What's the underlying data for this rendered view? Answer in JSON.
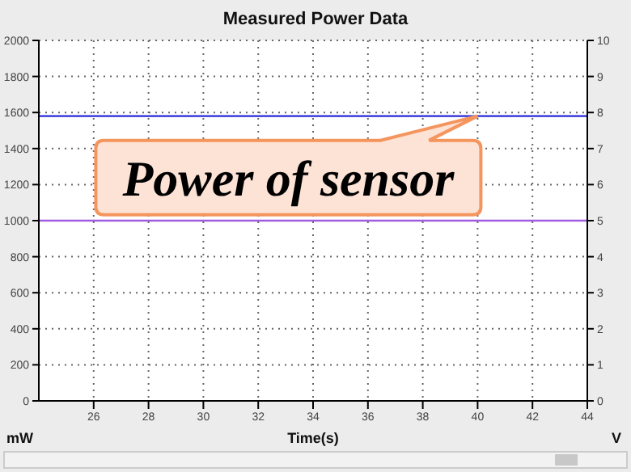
{
  "chart_data": {
    "type": "line",
    "title": "Measured Power Data",
    "xlabel": "Time(s)",
    "ylabel": "mW",
    "y2label": "V",
    "x": [
      24,
      44
    ],
    "series": [
      {
        "color": "#2828d8",
        "values": [
          1580,
          1580
        ]
      },
      {
        "color": "#a05ce0",
        "values": [
          5,
          5
        ],
        "axis": "y2"
      }
    ],
    "xlim": [
      24,
      44
    ],
    "xticks": [
      26,
      28,
      30,
      32,
      34,
      36,
      38,
      40,
      42,
      44
    ],
    "ylim": [
      0,
      2000
    ],
    "yticks": [
      0,
      200,
      400,
      600,
      800,
      1000,
      1200,
      1400,
      1600,
      1800,
      2000
    ],
    "y2lim": [
      0,
      10
    ],
    "y2ticks": [
      0,
      1,
      2,
      3,
      4,
      5,
      6,
      7,
      8,
      9,
      10
    ],
    "grid": true,
    "marker": "none",
    "line_style": "solid",
    "annotations": [
      {
        "text": "Power of sensor",
        "x": 40,
        "y": 1580
      }
    ]
  }
}
